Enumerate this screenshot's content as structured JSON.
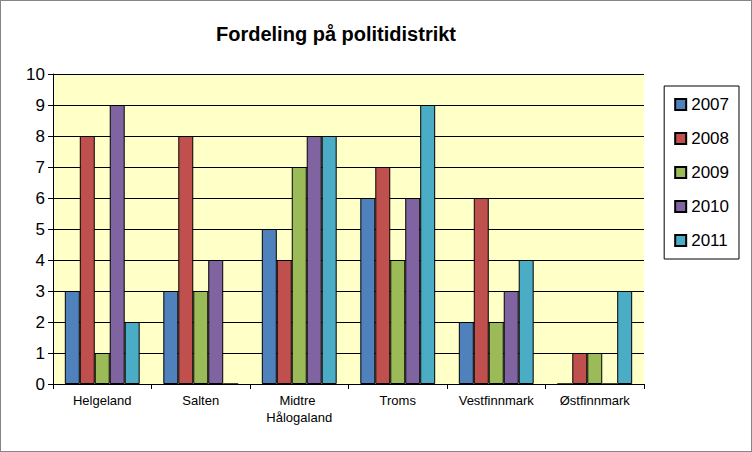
{
  "chart_data": {
    "type": "bar",
    "title": "Fordeling på politidistrikt",
    "categories": [
      "Helgeland",
      "Salten",
      "Midtre Hålogaland",
      "Troms",
      "Vestfinnmark",
      "Østfinnmark"
    ],
    "series": [
      {
        "name": "2007",
        "color": "#4f81bd",
        "values": [
          3,
          3,
          5,
          6,
          2,
          0
        ]
      },
      {
        "name": "2008",
        "color": "#c0504d",
        "values": [
          8,
          8,
          4,
          7,
          6,
          1
        ]
      },
      {
        "name": "2009",
        "color": "#9bbb59",
        "values": [
          1,
          3,
          7,
          4,
          2,
          1
        ]
      },
      {
        "name": "2010",
        "color": "#8064a2",
        "values": [
          9,
          4,
          8,
          6,
          3,
          0
        ]
      },
      {
        "name": "2011",
        "color": "#4bacc6",
        "values": [
          2,
          0,
          8,
          9,
          4,
          3
        ]
      }
    ],
    "ylim": [
      0,
      10
    ],
    "yticks": [
      0,
      1,
      2,
      3,
      4,
      5,
      6,
      7,
      8,
      9,
      10
    ],
    "grid": true,
    "legend": "right"
  }
}
